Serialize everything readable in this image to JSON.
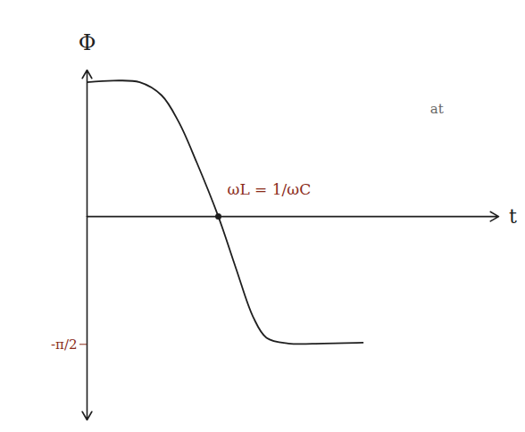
{
  "chart_data": {
    "type": "line",
    "x_label": "t",
    "y_label": "Φ",
    "x": [
      0,
      0.64,
      1.28,
      1.81,
      2.23,
      2.66,
      3.19,
      3.62,
      4.04,
      4.36,
      4.89,
      5.74,
      6.7
    ],
    "values": [
      1.65,
      1.67,
      1.65,
      1.49,
      1.16,
      0.67,
      0,
      -0.64,
      -1.24,
      -1.49,
      -1.56,
      -1.56,
      -1.55
    ],
    "color": "#1f1f1f",
    "xlim": [
      0,
      10
    ],
    "ylim": [
      -2.5,
      1.8
    ],
    "yticks": [
      {
        "value": -1.5708,
        "label": "-π/2"
      }
    ],
    "tick_labels": "y",
    "annotations": [
      {
        "text": "ωL = 1/ωC",
        "x": 3.19,
        "y": 0,
        "marker": "dot"
      },
      {
        "text": "at",
        "x": 8.5,
        "y": 1.32
      }
    ]
  }
}
